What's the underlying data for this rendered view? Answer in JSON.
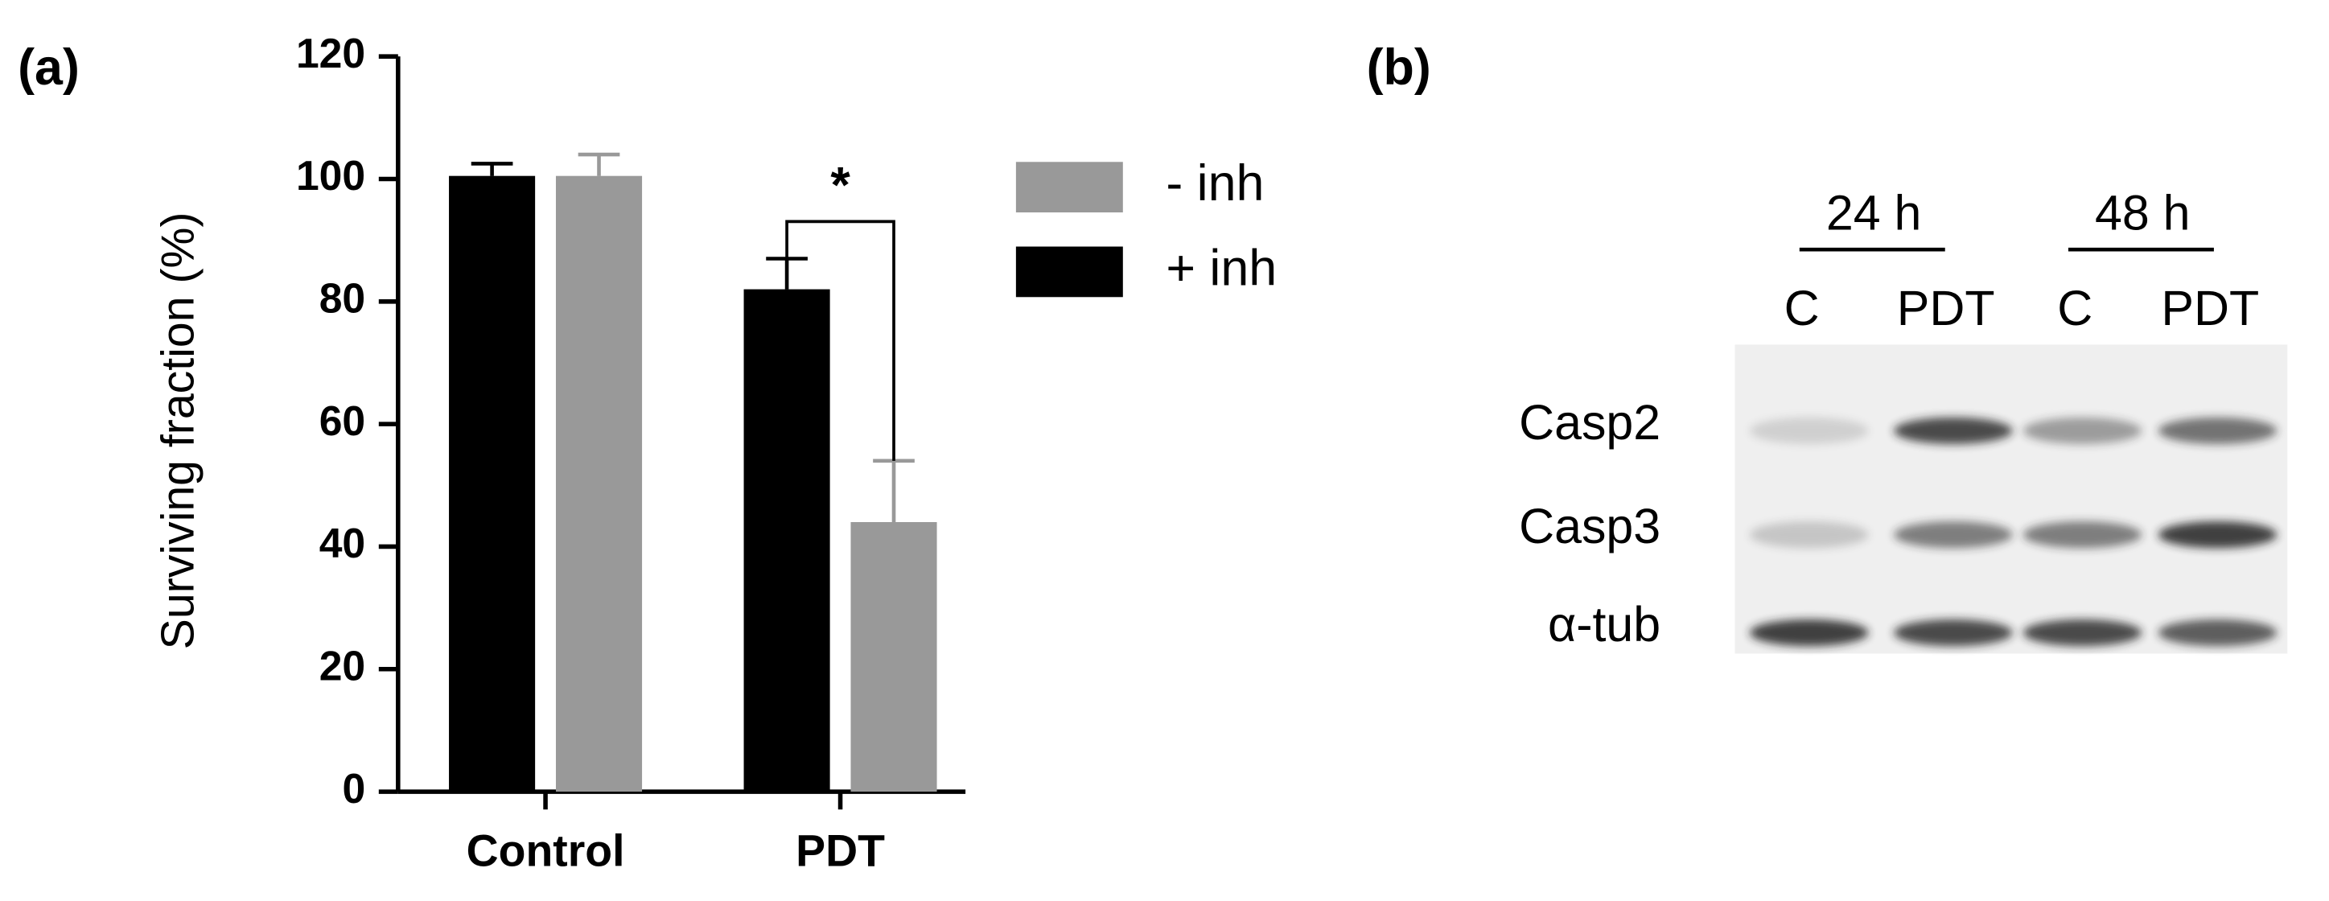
{
  "panel_a": "(a)",
  "chart_data": {
    "type": "bar",
    "ylabel": "Surviving fraction (%)",
    "categories": [
      "Control",
      "PDT"
    ],
    "series": [
      {
        "name": "+ inh",
        "color": "#000000",
        "values": [
          100.5,
          82
        ],
        "errors": [
          2,
          5
        ]
      },
      {
        "name": "- inh",
        "color": "#999999",
        "values": [
          100.5,
          44
        ],
        "errors": [
          3.5,
          10
        ]
      }
    ],
    "ylim": [
      0,
      120
    ],
    "yticks": [
      0,
      20,
      40,
      60,
      80,
      100,
      120
    ],
    "significance": "*"
  },
  "blot": {
    "panel_label": "(b)",
    "time_groups": [
      "24 h",
      "48 h"
    ],
    "lanes": [
      "C",
      "PDT",
      "C",
      "PDT"
    ],
    "rows": [
      "Casp2",
      "Casp3",
      "α-tub"
    ]
  }
}
